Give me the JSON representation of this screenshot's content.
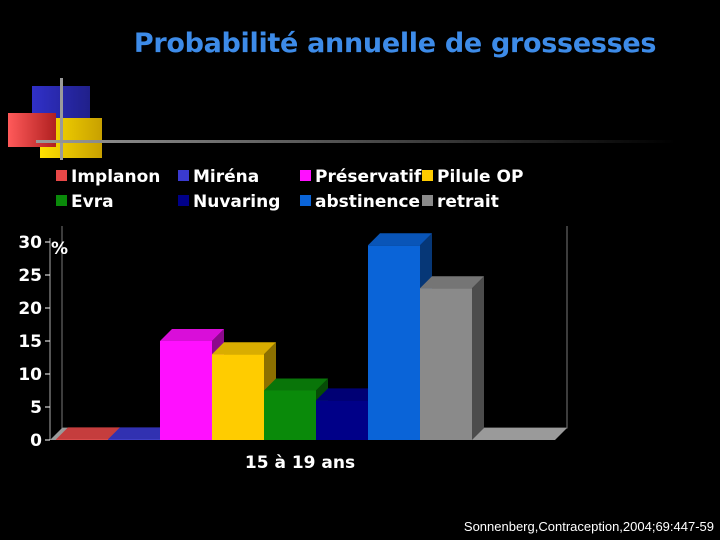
{
  "title": "Probabilité annuelle de grossesses",
  "source": "Sonnenberg,Contraception,2004;69:447-59",
  "chart_data": {
    "type": "bar",
    "categories": [
      "15 à 19 ans"
    ],
    "ylabel": "%",
    "ylim": [
      0,
      30
    ],
    "yticks": [
      0,
      5,
      10,
      15,
      20,
      25,
      30
    ],
    "grid": false,
    "legend_position": "top",
    "series": [
      {
        "name": "Implanon",
        "value": 0.1,
        "color": "#e84848"
      },
      {
        "name": "Miréna",
        "value": 0.1,
        "color": "#3a3ad0"
      },
      {
        "name": "Préservatif",
        "value": 15,
        "color": "#ff10ff"
      },
      {
        "name": "Pilule OP",
        "value": 13,
        "color": "#ffcc00"
      },
      {
        "name": "Evra",
        "value": 7.5,
        "color": "#0a8a0a"
      },
      {
        "name": "Nuvaring",
        "value": 6,
        "color": "#000088"
      },
      {
        "name": "abstinence",
        "value": 29.5,
        "color": "#0a64d8"
      },
      {
        "name": "retrait",
        "value": 23,
        "color": "#8a8a8a"
      }
    ]
  }
}
